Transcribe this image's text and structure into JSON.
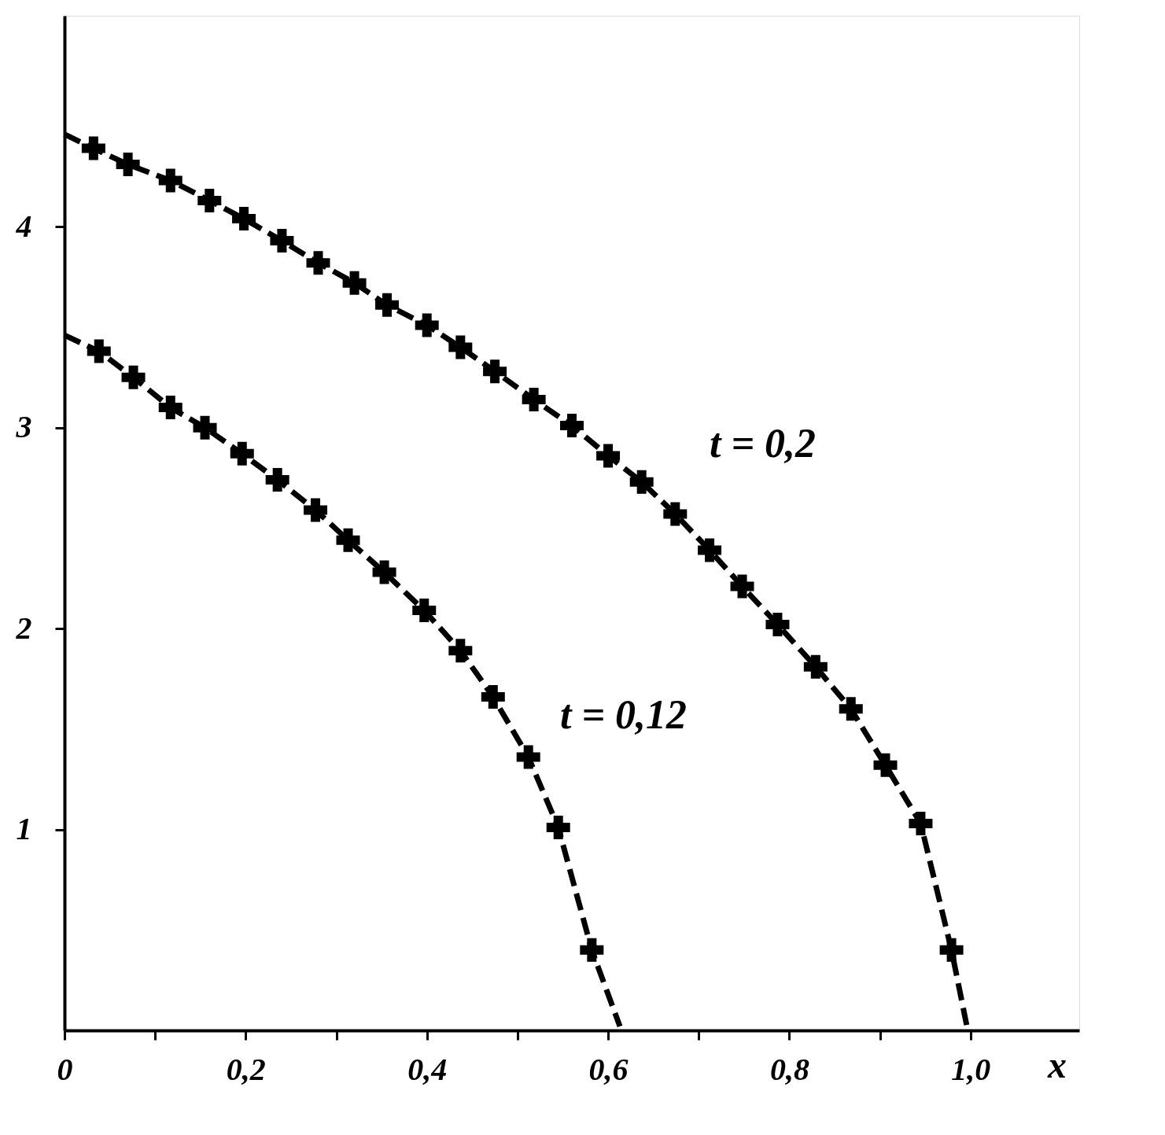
{
  "chart_data": {
    "type": "line",
    "xlabel": "x",
    "xlim": [
      0,
      1.12
    ],
    "ylim": [
      0,
      5.05
    ],
    "xticks": [
      {
        "value": 0,
        "label": "0"
      },
      {
        "value": 0.1,
        "label": null
      },
      {
        "value": 0.2,
        "label": "0,2"
      },
      {
        "value": 0.3,
        "label": null
      },
      {
        "value": 0.4,
        "label": "0,4"
      },
      {
        "value": 0.5,
        "label": null
      },
      {
        "value": 0.6,
        "label": "0,6"
      },
      {
        "value": 0.7,
        "label": null
      },
      {
        "value": 0.8,
        "label": "0,8"
      },
      {
        "value": 0.9,
        "label": null
      },
      {
        "value": 1.0,
        "label": "1,0"
      }
    ],
    "yticks": [
      1,
      2,
      3,
      4
    ],
    "grid": false,
    "series": [
      {
        "line_style": "dashed",
        "marker": "none",
        "color": "#000000",
        "x": [
          0,
          0.032,
          0.07,
          0.117,
          0.16,
          0.198,
          0.24,
          0.28,
          0.32,
          0.356,
          0.4,
          0.437,
          0.475,
          0.518,
          0.56,
          0.6,
          0.637,
          0.674,
          0.712,
          0.748,
          0.787,
          0.829,
          0.868,
          0.906,
          0.945,
          0.979,
          0.996
        ],
        "values": [
          4.46,
          4.39,
          4.31,
          4.23,
          4.13,
          4.04,
          3.93,
          3.82,
          3.72,
          3.61,
          3.51,
          3.4,
          3.28,
          3.14,
          3.01,
          2.86,
          2.73,
          2.57,
          2.39,
          2.21,
          2.02,
          1.81,
          1.6,
          1.32,
          1.03,
          0.4,
          0.02
        ]
      },
      {
        "type": "scatter",
        "marker": "cross",
        "color": "#000000",
        "x": [
          0.032,
          0.07,
          0.117,
          0.16,
          0.198,
          0.24,
          0.28,
          0.32,
          0.356,
          0.4,
          0.437,
          0.475,
          0.518,
          0.56,
          0.6,
          0.637,
          0.674,
          0.712,
          0.748,
          0.787,
          0.829,
          0.868,
          0.906,
          0.945,
          0.979
        ],
        "values": [
          4.39,
          4.31,
          4.23,
          4.13,
          4.04,
          3.93,
          3.82,
          3.72,
          3.61,
          3.51,
          3.4,
          3.28,
          3.14,
          3.01,
          2.86,
          2.73,
          2.57,
          2.39,
          2.21,
          2.02,
          1.81,
          1.6,
          1.32,
          1.03,
          0.4
        ]
      },
      {
        "line_style": "dashed",
        "marker": "none",
        "color": "#000000",
        "x": [
          0,
          0.038,
          0.076,
          0.117,
          0.155,
          0.196,
          0.235,
          0.277,
          0.313,
          0.353,
          0.397,
          0.437,
          0.473,
          0.512,
          0.545,
          0.582,
          0.613
        ],
        "values": [
          3.46,
          3.38,
          3.25,
          3.1,
          3.0,
          2.87,
          2.74,
          2.59,
          2.44,
          2.28,
          2.09,
          1.89,
          1.66,
          1.36,
          1.01,
          0.4,
          0.02
        ]
      },
      {
        "type": "scatter",
        "marker": "cross",
        "color": "#000000",
        "x": [
          0.038,
          0.076,
          0.117,
          0.155,
          0.196,
          0.235,
          0.277,
          0.313,
          0.353,
          0.397,
          0.437,
          0.473,
          0.512,
          0.545,
          0.582
        ],
        "values": [
          3.38,
          3.25,
          3.1,
          3.0,
          2.87,
          2.74,
          2.59,
          2.44,
          2.28,
          2.09,
          1.89,
          1.66,
          1.36,
          1.01,
          0.4
        ]
      }
    ],
    "annotations": [
      "t = 0,2",
      "t = 0,12"
    ]
  }
}
